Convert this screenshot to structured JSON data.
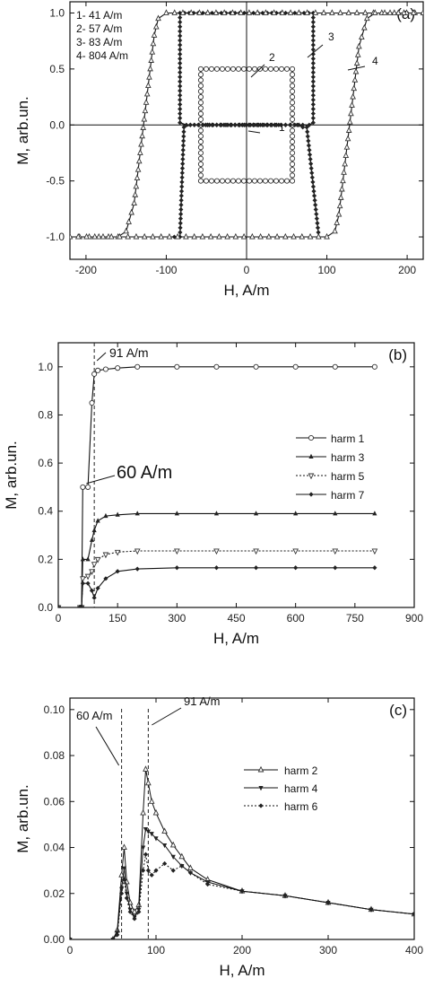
{
  "chart_data": [
    {
      "type": "line",
      "panel_label": "(a)",
      "xlabel": "H, A/m",
      "ylabel": "M, arb.un.",
      "xlim": [
        -220,
        220
      ],
      "ylim": [
        -1.2,
        1.1
      ],
      "xticks": [
        -200,
        -100,
        0,
        100,
        200
      ],
      "yticks": [
        -1.0,
        -0.5,
        0.0,
        0.5,
        1.0
      ],
      "xtick_labels": [
        "-200",
        "-100",
        "0",
        "100",
        "200"
      ],
      "ytick_labels": [
        "-1.0",
        "-0.5",
        "0.0",
        "0.5",
        "1.0"
      ],
      "legend_position": "top-left",
      "legend": [
        "1-  41 A/m",
        "2-  57 A/m",
        "3-  83 A/m",
        "4-  804 A/m"
      ],
      "annotations": [
        "1",
        "2",
        "3",
        "4"
      ],
      "series": [
        {
          "name": "1",
          "x": [
            -60,
            -5,
            5,
            40,
            -60
          ],
          "y": [
            0.0,
            0.0,
            0.0,
            0.0,
            0.0
          ]
        },
        {
          "name": "2",
          "x": [
            -57,
            -57,
            57,
            57,
            -57
          ],
          "y": [
            -0.5,
            0.5,
            0.5,
            -0.5,
            -0.5
          ]
        },
        {
          "name": "3",
          "x": [
            -90,
            -83,
            -78,
            -70,
            -65,
            -60,
            60,
            63,
            65,
            70,
            78,
            83,
            83,
            -83,
            -83,
            -75,
            -70,
            -65,
            -60,
            60,
            65,
            70,
            75,
            90
          ],
          "y": [
            -1.0,
            -1.0,
            -0.02,
            0.0,
            0.0,
            0.0,
            0.0,
            0.0,
            0.0,
            0.0,
            0.0,
            0.02,
            1.0,
            1.0,
            0.02,
            0.0,
            0.0,
            0.0,
            0.0,
            0.0,
            0.0,
            -0.02,
            -0.02,
            -1.0
          ]
        },
        {
          "name": "4",
          "x": [
            -220,
            -160,
            -150,
            -140,
            -135,
            -130,
            -125,
            -120,
            -115,
            -110,
            -100,
            220,
            220,
            160,
            150,
            140,
            135,
            130,
            125,
            120,
            115,
            110,
            100,
            -220
          ],
          "y": [
            -1.0,
            -1.0,
            -0.95,
            -0.7,
            -0.4,
            -0.1,
            0.2,
            0.5,
            0.8,
            0.95,
            1.0,
            1.0,
            1.0,
            1.0,
            0.95,
            0.7,
            0.4,
            0.1,
            -0.2,
            -0.5,
            -0.8,
            -0.95,
            -1.0,
            -1.0
          ]
        }
      ]
    },
    {
      "type": "line",
      "panel_label": "(b)",
      "xlabel": "H, A/m",
      "ylabel": "M, arb.un.",
      "xlim": [
        0,
        900
      ],
      "ylim": [
        0,
        1.1
      ],
      "xticks": [
        0,
        150,
        300,
        450,
        600,
        750,
        900
      ],
      "yticks": [
        0.0,
        0.2,
        0.4,
        0.6,
        0.8,
        1.0
      ],
      "xtick_labels": [
        "0",
        "150",
        "300",
        "450",
        "600",
        "750",
        "900"
      ],
      "ytick_labels": [
        "0.0",
        "0.2",
        "0.4",
        "0.6",
        "0.8",
        "1.0"
      ],
      "legend_position": "right",
      "annotations": [
        "91 A/m",
        "60 A/m"
      ],
      "vlines": [
        91
      ],
      "series": [
        {
          "name": "harm 1",
          "x": [
            0,
            55,
            59,
            62,
            75,
            85,
            91,
            100,
            120,
            150,
            200,
            300,
            400,
            500,
            600,
            700,
            800
          ],
          "y": [
            0,
            0,
            0.0,
            0.5,
            0.5,
            0.85,
            0.97,
            0.985,
            0.99,
            0.995,
            1.0,
            1.0,
            1.0,
            1.0,
            1.0,
            1.0,
            1.0
          ]
        },
        {
          "name": "harm 3",
          "x": [
            0,
            55,
            59,
            62,
            75,
            85,
            91,
            100,
            120,
            150,
            200,
            300,
            400,
            500,
            600,
            700,
            800
          ],
          "y": [
            0,
            0,
            0.0,
            0.2,
            0.2,
            0.28,
            0.32,
            0.36,
            0.38,
            0.385,
            0.39,
            0.39,
            0.39,
            0.39,
            0.39,
            0.39,
            0.39
          ]
        },
        {
          "name": "harm 5",
          "x": [
            0,
            55,
            59,
            62,
            75,
            85,
            91,
            100,
            120,
            150,
            200,
            300,
            400,
            500,
            600,
            700,
            800
          ],
          "y": [
            0,
            0,
            0.0,
            0.12,
            0.13,
            0.15,
            0.18,
            0.2,
            0.22,
            0.23,
            0.235,
            0.235,
            0.235,
            0.235,
            0.235,
            0.235,
            0.235
          ]
        },
        {
          "name": "harm 7",
          "x": [
            0,
            55,
            59,
            62,
            75,
            85,
            91,
            100,
            120,
            150,
            200,
            300,
            400,
            500,
            600,
            700,
            800
          ],
          "y": [
            0,
            0,
            0.0,
            0.1,
            0.1,
            0.07,
            0.04,
            0.08,
            0.12,
            0.15,
            0.16,
            0.165,
            0.165,
            0.165,
            0.165,
            0.165,
            0.165
          ]
        }
      ]
    },
    {
      "type": "line",
      "panel_label": "(c)",
      "xlabel": "H, A/m",
      "ylabel": "M, arb.un.",
      "xlim": [
        0,
        400
      ],
      "ylim": [
        0,
        0.105
      ],
      "xticks": [
        0,
        100,
        200,
        300,
        400
      ],
      "yticks": [
        0.0,
        0.02,
        0.04,
        0.06,
        0.08,
        0.1
      ],
      "xtick_labels": [
        "0",
        "100",
        "200",
        "300",
        "400"
      ],
      "ytick_labels": [
        "0.00",
        "0.02",
        "0.04",
        "0.06",
        "0.08",
        "0.10"
      ],
      "legend_position": "top-right",
      "annotations": [
        "60 A/m",
        "91 A/m"
      ],
      "vlines": [
        60,
        91
      ],
      "series": [
        {
          "name": "harm 2",
          "x": [
            0,
            50,
            55,
            60,
            63,
            66,
            70,
            75,
            80,
            85,
            88,
            91,
            95,
            100,
            110,
            120,
            130,
            140,
            160,
            200,
            250,
            300,
            350,
            400
          ],
          "y": [
            0,
            0,
            0.004,
            0.028,
            0.04,
            0.025,
            0.016,
            0.012,
            0.015,
            0.055,
            0.074,
            0.068,
            0.06,
            0.055,
            0.047,
            0.041,
            0.036,
            0.031,
            0.026,
            0.021,
            0.019,
            0.016,
            0.013,
            0.011
          ]
        },
        {
          "name": "harm 4",
          "x": [
            0,
            50,
            55,
            60,
            63,
            66,
            70,
            75,
            80,
            85,
            88,
            91,
            95,
            100,
            110,
            120,
            130,
            140,
            160,
            200,
            250,
            300,
            350,
            400
          ],
          "y": [
            0,
            0,
            0.003,
            0.022,
            0.031,
            0.02,
            0.013,
            0.01,
            0.013,
            0.04,
            0.048,
            0.047,
            0.046,
            0.044,
            0.041,
            0.036,
            0.032,
            0.029,
            0.025,
            0.021,
            0.019,
            0.016,
            0.013,
            0.011
          ]
        },
        {
          "name": "harm 6",
          "x": [
            0,
            50,
            55,
            60,
            63,
            66,
            70,
            75,
            80,
            85,
            88,
            91,
            95,
            100,
            110,
            120,
            130,
            140,
            160,
            200,
            250,
            300,
            350,
            400
          ],
          "y": [
            0,
            0,
            0.002,
            0.02,
            0.026,
            0.018,
            0.012,
            0.009,
            0.012,
            0.03,
            0.037,
            0.03,
            0.028,
            0.03,
            0.033,
            0.03,
            0.032,
            0.029,
            0.024,
            0.021,
            0.019,
            0.016,
            0.013,
            0.011
          ]
        }
      ]
    }
  ]
}
